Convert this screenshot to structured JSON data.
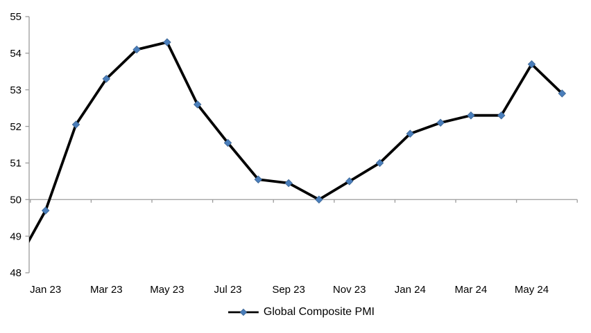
{
  "chart_data": {
    "type": "line",
    "title": "",
    "xlabel": "",
    "ylabel": "",
    "categories": [
      "Dec 22",
      "Jan 23",
      "Feb 23",
      "Mar 23",
      "Apr 23",
      "May 23",
      "Jun 23",
      "Jul 23",
      "Aug 23",
      "Sep 23",
      "Oct 23",
      "Nov 23",
      "Dec 23",
      "Jan 24",
      "Feb 24",
      "Mar 24",
      "Apr 24",
      "May 24",
      "Jun 24"
    ],
    "series": [
      {
        "name": "Global Composite PMI",
        "values": [
          48.2,
          49.7,
          52.05,
          53.3,
          54.1,
          54.3,
          52.6,
          51.55,
          50.55,
          50.45,
          50.0,
          50.5,
          51.0,
          51.8,
          52.1,
          52.3,
          52.3,
          53.7,
          52.9
        ],
        "line_color": "#000000",
        "marker": "diamond",
        "marker_color": "#4A7EBB",
        "marker_edge_color": "#38618F"
      }
    ],
    "ylim": [
      48,
      55
    ],
    "y_tick_labels": [
      "48",
      "49",
      "50",
      "51",
      "52",
      "53",
      "54",
      "55"
    ],
    "x_tick_labels": [
      "Jan 23",
      "Mar 23",
      "May 23",
      "Jul 23",
      "Sep 23",
      "Nov 23",
      "Jan 24",
      "Mar 24",
      "May 24"
    ],
    "x_label_every_n_months": 2,
    "category_axis_crosses_at_value": 50,
    "first_point_clipped_at_left_edge": true,
    "grid": false,
    "legend_position": "bottom-center",
    "axis_color": "#9b9b9b",
    "text_color": "#000000",
    "background_color": "#ffffff"
  }
}
